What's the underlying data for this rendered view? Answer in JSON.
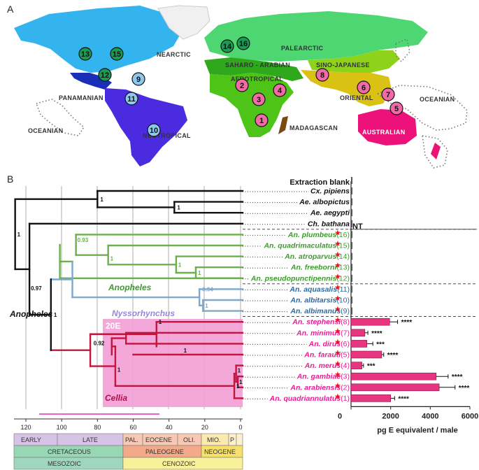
{
  "panel_a": {
    "label": "A",
    "regions": {
      "nearctic": "Nearctic",
      "palearctic": "Palearctic",
      "saharo_arabian": "Saharo -\nArabian",
      "afrotropical": "Afrotropical",
      "sino_japanese": "Sino-Japanese",
      "panamanian": "Panamanian",
      "oriental": "Oriental",
      "oceanian_east": "Oceanian",
      "oceanian_west": "Oceanian",
      "neotropical": "Neotropical",
      "madagascan": "Madagascan",
      "australian": "Australian"
    },
    "badges": [
      "13",
      "15",
      "14",
      "16",
      "12",
      "9",
      "11",
      "10",
      "2",
      "4",
      "3",
      "1",
      "8",
      "6",
      "7",
      "5"
    ]
  },
  "panel_b": {
    "label": "B",
    "extraction_blank": "Extraction blank",
    "nt_label": "NT",
    "clade_anopheles_subgenus": "Anopheles",
    "clade_nyssorhynchus": "Nyssorhynchus",
    "clade_anopheles_genus": "Anopheles",
    "clade_cellia": "Cellia",
    "box_label": "20E",
    "taxa": [
      {
        "name": "Cx. pipiens",
        "num": ""
      },
      {
        "name": "Ae. albopictus",
        "num": ""
      },
      {
        "name": "Ae. aegypti",
        "num": ""
      },
      {
        "name": "Ch. bathana",
        "num": ""
      },
      {
        "name": "An. plumbeus",
        "num": "(16)"
      },
      {
        "name": "An. quadrimaculatus",
        "num": "(15)"
      },
      {
        "name": "An. atroparvus",
        "num": "(14)"
      },
      {
        "name": "An. freeborni",
        "num": "(13)"
      },
      {
        "name": "An. pseudopunctipennis",
        "num": "(12)"
      },
      {
        "name": "An. aquasalis",
        "num": "(11)"
      },
      {
        "name": "An. albitarsis",
        "num": "(10)"
      },
      {
        "name": "An. albimanus",
        "num": "(9)"
      },
      {
        "name": "An. stephensi",
        "num": "(8)"
      },
      {
        "name": "An. minimus",
        "num": "(7)"
      },
      {
        "name": "An. dirus",
        "num": "(6)"
      },
      {
        "name": "An. farauti",
        "num": "(5)"
      },
      {
        "name": "An. merus",
        "num": "(4)"
      },
      {
        "name": "An. gambiae",
        "num": "(3)"
      },
      {
        "name": "An. arabiensis",
        "num": "(2)"
      },
      {
        "name": "An. quadriannulatus",
        "num": "(1)"
      }
    ],
    "support": [
      "1",
      "1",
      "1",
      "0.97",
      "1",
      "0.93",
      "1",
      "1",
      "1",
      "0.94",
      "1",
      "1",
      "0.92",
      "1",
      "1",
      "1",
      "1",
      "1"
    ],
    "time_axis": {
      "ticks": [
        "120",
        "100",
        "80",
        "60",
        "40",
        "20",
        "0"
      ]
    },
    "epochs": {
      "early": "EARLY",
      "late": "LATE",
      "pal": "PAL.",
      "eocene": "EOCENE",
      "oli": "OLI.",
      "mio": "MIO.",
      "p": "P",
      "cretaceous": "CRETACEOUS",
      "paleogene": "PALEOGENE",
      "neogene": "NEOGENE",
      "mesozoic": "MESOZOIC",
      "cenozoic": "CENOZOIC"
    }
  },
  "chart_data": {
    "type": "bar",
    "orientation": "horizontal",
    "xlabel": "pg E equivalent / male",
    "xlim": [
      0,
      6000
    ],
    "xticks": [
      "0",
      "2000",
      "4000",
      "6000"
    ],
    "categories": [
      "Extraction blank",
      "Cx. pipiens",
      "Ae. albopictus",
      "Ae. aegypti",
      "Ch. bathana",
      "An. plumbeus",
      "An. quadrimaculatus",
      "An. atroparvus",
      "An. freeborni",
      "An. pseudopunctipennis",
      "An. aquasalis",
      "An. albitarsis",
      "An. albimanus",
      "An. stephensi",
      "An. minimus",
      "An. dirus",
      "An. farauti",
      "An. merus",
      "An. gambiae",
      "An. arabiensis",
      "An. quadriannulatus"
    ],
    "values": [
      0,
      0,
      0,
      0,
      0,
      0,
      0,
      0,
      0,
      0,
      0,
      0,
      0,
      1950,
      700,
      800,
      1550,
      550,
      4300,
      4450,
      2000
    ],
    "errors": [
      0,
      0,
      0,
      0,
      0,
      0,
      0,
      0,
      0,
      0,
      0,
      0,
      0,
      400,
      150,
      300,
      100,
      80,
      600,
      800,
      200
    ],
    "significance": [
      "",
      "",
      "",
      "",
      "",
      "",
      "",
      "",
      "",
      "",
      "",
      "",
      "",
      "****",
      "****",
      "***",
      "****",
      "***",
      "****",
      "****",
      "****"
    ],
    "bar_color": "#e8357f"
  }
}
